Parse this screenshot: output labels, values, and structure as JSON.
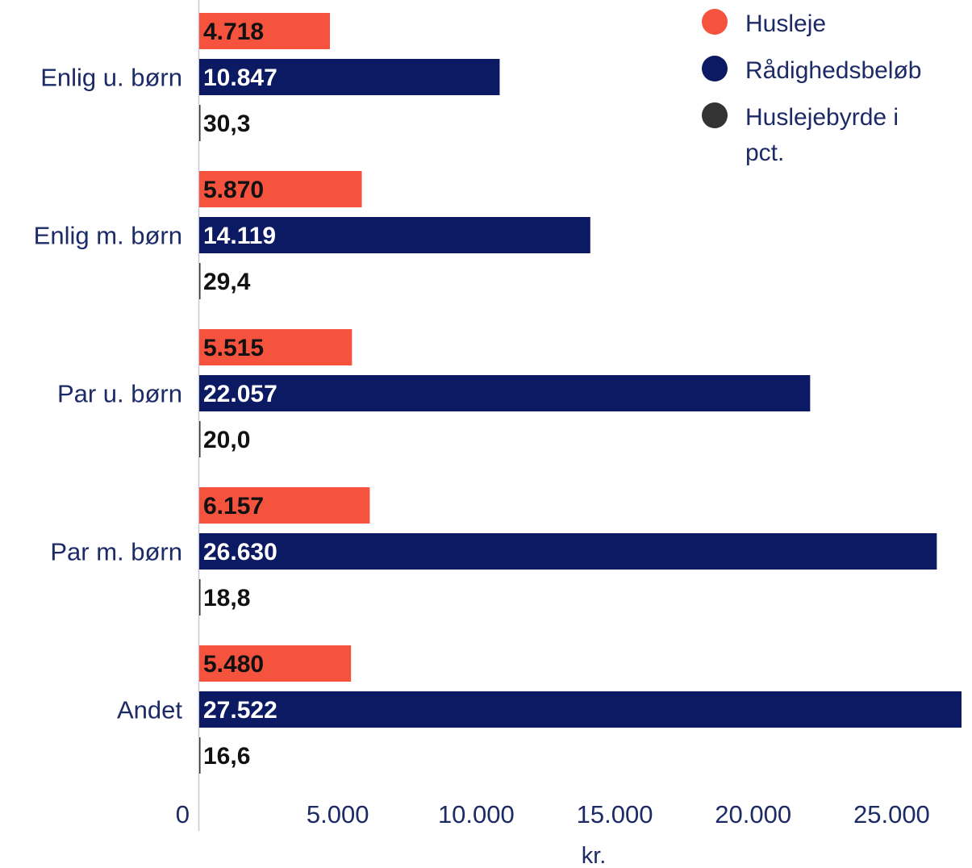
{
  "chart_data": {
    "type": "bar",
    "orientation": "horizontal",
    "categories": [
      "Enlig u. børn",
      "Enlig m. børn",
      "Par u. børn",
      "Par m. børn",
      "Andet"
    ],
    "series": [
      {
        "name": "Husleje",
        "color": "#f5533d",
        "label_color": "#111111",
        "values": [
          4718,
          5870,
          5515,
          6157,
          5480
        ],
        "labels": [
          "4.718",
          "5.870",
          "5.515",
          "6.157",
          "5.480"
        ]
      },
      {
        "name": "Rådighedsbeløb",
        "color": "#0c1a63",
        "label_color": "#ffffff",
        "values": [
          10847,
          14119,
          22057,
          26630,
          27522
        ],
        "labels": [
          "10.847",
          "14.119",
          "22.057",
          "26.630",
          "27.522"
        ]
      },
      {
        "name": "Huslejebyrde i pct.",
        "color": "#333333",
        "label_color": "#111111",
        "values": [
          30.3,
          29.4,
          20.0,
          18.8,
          16.6
        ],
        "labels": [
          "30,3",
          "29,4",
          "20,0",
          "18,8",
          "16,6"
        ]
      }
    ],
    "xlim": [
      0,
      27522
    ],
    "xticks": [
      0,
      5000,
      10000,
      15000,
      20000,
      25000
    ],
    "xtick_labels": [
      "0",
      "5.000",
      "10.000",
      "15.000",
      "20.000",
      "25.000"
    ],
    "xlabel": "kr.",
    "legend_position": "top-right",
    "grid": false
  }
}
